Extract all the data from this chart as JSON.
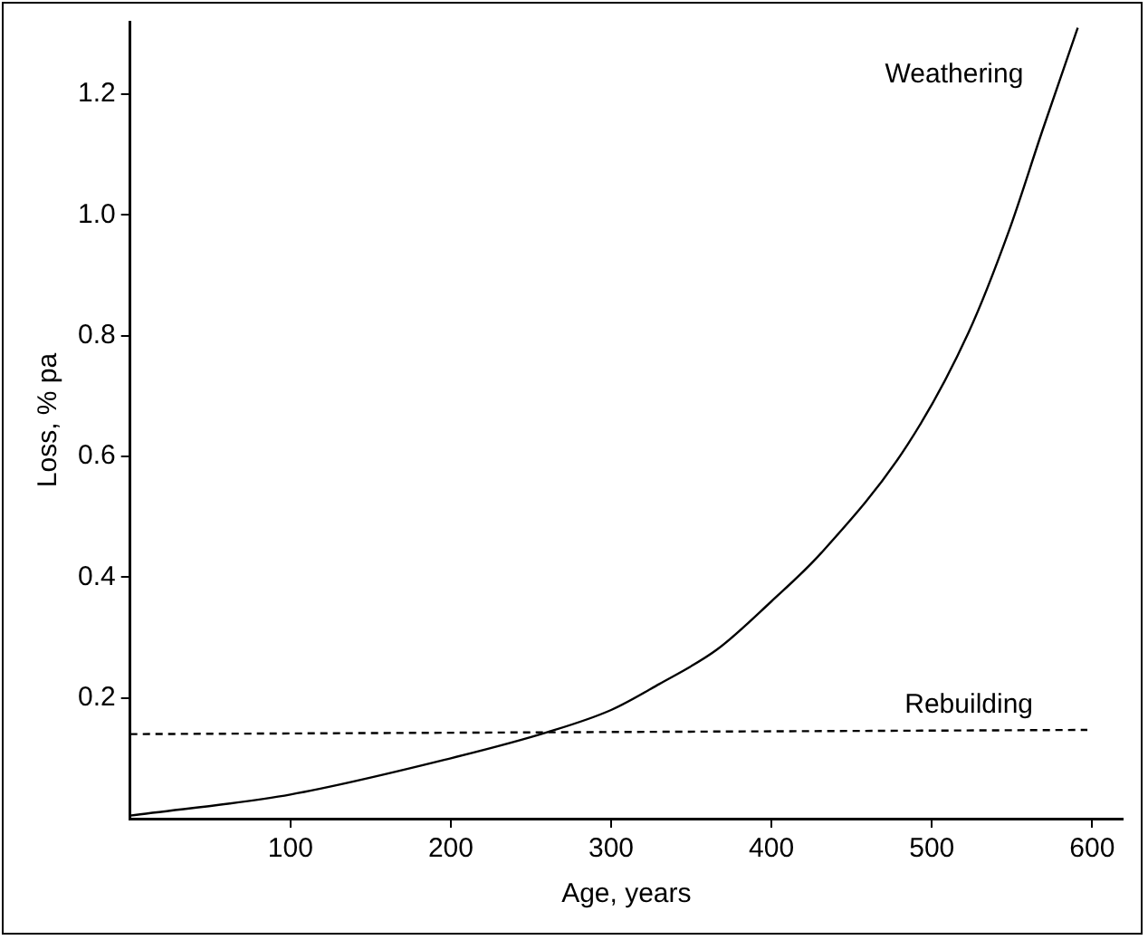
{
  "chart_data": {
    "type": "line",
    "xlabel": "Age, years",
    "ylabel": "Loss, % pa",
    "xlim": [
      0,
      619
    ],
    "xticks": [
      100,
      200,
      300,
      400,
      500,
      600
    ],
    "ylim": [
      0,
      1.32
    ],
    "yticks": [
      0.2,
      0.4,
      0.6,
      0.8,
      {
        "value": 1,
        "label": "1.0"
      },
      1.2
    ],
    "grid": false,
    "legend": false,
    "marker": "none",
    "series": [
      {
        "name": "Weathering",
        "color": "#000000",
        "line_style": "solid",
        "x": [
          0,
          100,
          200,
          260,
          300,
          330,
          366,
          400,
          431,
          485,
          523,
          548,
          569,
          591
        ],
        "values": [
          0.005,
          0.04,
          0.1,
          0.143,
          0.18,
          0.223,
          0.28,
          0.36,
          0.44,
          0.62,
          0.806,
          0.973,
          1.14,
          1.31
        ]
      },
      {
        "name": "Rebuilding",
        "color": "#000000",
        "line_style": "dashed",
        "x": [
          0,
          597
        ],
        "values": [
          0.14,
          0.147
        ]
      }
    ]
  }
}
